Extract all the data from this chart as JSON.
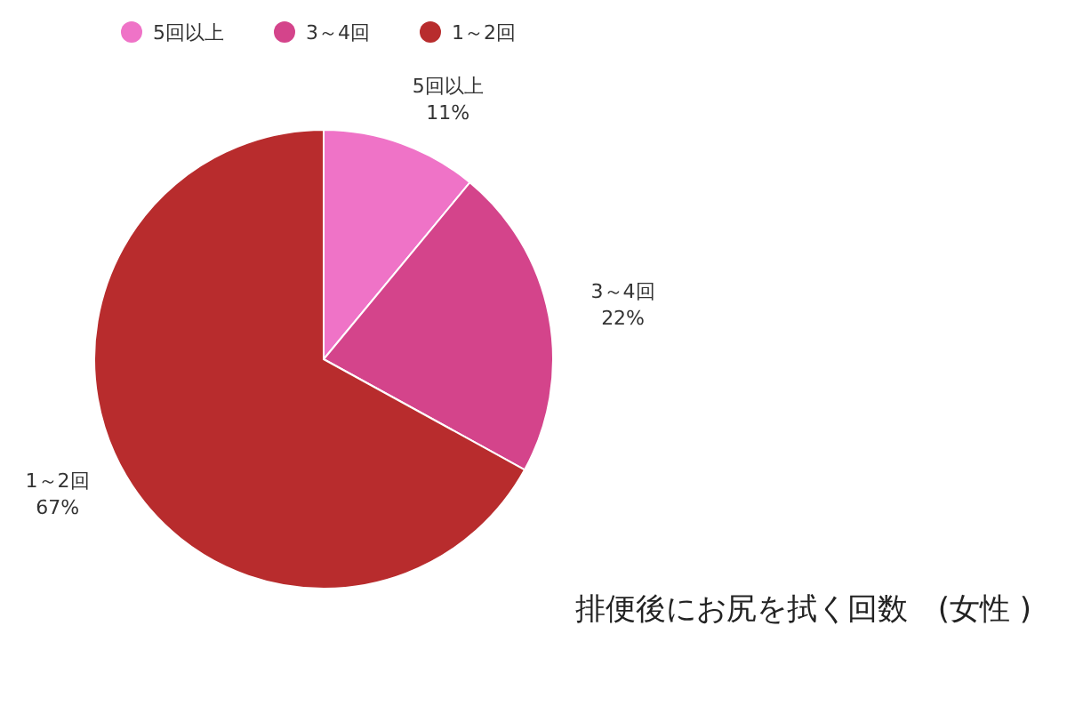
{
  "chart_data": {
    "type": "pie",
    "title": "排便後にお尻を拭く回数　(女性 )",
    "categories": [
      "5回以上",
      "3～4回",
      "1～2回"
    ],
    "values": [
      11,
      22,
      67
    ],
    "colors": [
      "#ef73c7",
      "#d4448b",
      "#b82c2d"
    ],
    "value_labels": [
      "11%",
      "22%",
      "67%"
    ],
    "legend": "top left"
  }
}
